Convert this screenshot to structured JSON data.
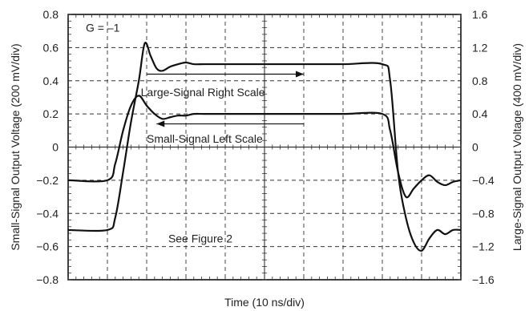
{
  "chart_data": {
    "type": "line",
    "xlabel": "Time (10 ns/div)",
    "ylabel_left": "Small-Signal Output Voltage (200 mV/div)",
    "ylabel_right": "Large-Signal Output Voltage (400 mV/div)",
    "xlim": [
      0,
      10
    ],
    "ylim_left": [
      -0.8,
      0.8
    ],
    "ylim_right": [
      -1.6,
      1.6
    ],
    "y_ticks_left": [
      "0.8",
      "0.6",
      "0.4",
      "0.2",
      "0",
      "-0.2",
      "-0.4",
      "-0.6",
      "-0.8"
    ],
    "y_ticks_right": [
      "1.6",
      "1.2",
      "0.8",
      "0.4",
      "0",
      "-0.4",
      "-0.8",
      "-1.2",
      "-1.6"
    ],
    "x_tick_labels": [],
    "grid": true,
    "annotations": {
      "gain": "G = –1",
      "large_signal": "Large-Signal Right Scale",
      "small_signal": "Small-Signal Left Scale",
      "see_figure": "See Figure 2"
    },
    "series": [
      {
        "name": "",
        "axis": "left",
        "x": [
          0,
          1.0,
          1.2,
          1.4,
          1.6,
          1.8,
          2.0,
          2.2,
          2.4,
          2.6,
          2.8,
          3.0,
          3.2,
          3.5,
          4,
          5,
          6,
          7,
          8,
          8.2,
          8.4,
          8.6,
          8.8,
          9.0,
          9.2,
          9.4,
          9.6,
          9.8,
          10.0
        ],
        "y": [
          -0.2,
          -0.2,
          -0.1,
          0.1,
          0.25,
          0.31,
          0.25,
          0.2,
          0.17,
          0.18,
          0.19,
          0.19,
          0.2,
          0.2,
          0.2,
          0.2,
          0.2,
          0.2,
          0.2,
          0.1,
          -0.15,
          -0.3,
          -0.25,
          -0.2,
          -0.17,
          -0.21,
          -0.23,
          -0.21,
          -0.2
        ]
      },
      {
        "name": "",
        "axis": "right",
        "x": [
          0,
          1.0,
          1.2,
          1.4,
          1.6,
          1.8,
          1.95,
          2.1,
          2.25,
          2.4,
          2.6,
          2.8,
          3.0,
          3.2,
          3.5,
          4,
          5,
          6,
          7,
          8,
          8.2,
          8.4,
          8.6,
          8.8,
          9.0,
          9.2,
          9.4,
          9.6,
          9.8,
          10.0
        ],
        "y": [
          -1.0,
          -1.0,
          -0.85,
          -0.3,
          0.3,
          0.8,
          1.25,
          1.1,
          0.95,
          0.92,
          0.97,
          1.0,
          1.02,
          1.0,
          1.0,
          1.0,
          1.0,
          1.0,
          1.0,
          1.0,
          0.8,
          -0.3,
          -0.85,
          -1.15,
          -1.25,
          -1.1,
          -1.0,
          -1.05,
          -1.0,
          -1.0
        ]
      }
    ]
  }
}
